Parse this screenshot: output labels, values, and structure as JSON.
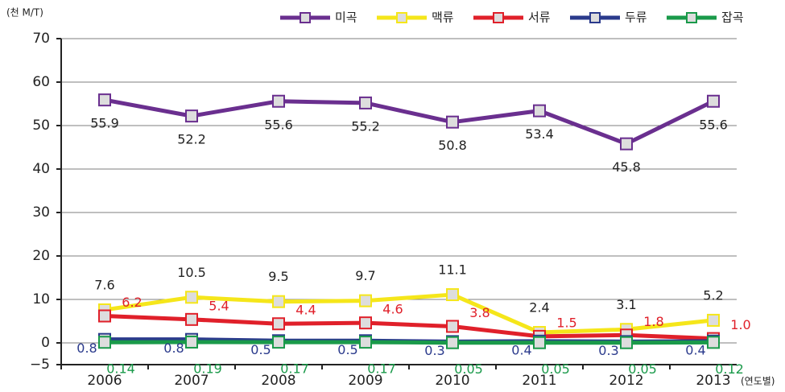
{
  "chart_data": {
    "type": "line",
    "y_label": "(천 M/T)",
    "x_label": "(연도별)",
    "categories": [
      "2006",
      "2007",
      "2008",
      "2009",
      "2010",
      "2011",
      "2012",
      "2013"
    ],
    "ylim": [
      -5,
      70
    ],
    "yticks": [
      {
        "value": -5,
        "label": "−5"
      },
      0,
      10,
      20,
      30,
      40,
      50,
      60,
      70
    ],
    "grid": true,
    "legend": "top-right",
    "series": [
      {
        "name": "미곡",
        "color": "#6a2f8f",
        "values": [
          55.9,
          52.2,
          55.6,
          55.2,
          50.8,
          53.4,
          45.8,
          55.6
        ]
      },
      {
        "name": "맥류",
        "color": "#f5e61a",
        "values": [
          7.6,
          10.5,
          9.5,
          9.7,
          11.1,
          2.4,
          3.1,
          5.2
        ]
      },
      {
        "name": "서류",
        "color": "#e0202a",
        "values": [
          6.2,
          5.4,
          4.4,
          4.6,
          3.8,
          1.5,
          1.8,
          1.0
        ],
        "value_labels": [
          "6.2",
          "5.4",
          "4.4",
          "4.6",
          "3.8",
          "1.5",
          "1.8",
          "1.0"
        ]
      },
      {
        "name": "두류",
        "color": "#2a3a8c",
        "values": [
          0.8,
          0.8,
          0.5,
          0.5,
          0.3,
          0.4,
          0.3,
          0.4
        ]
      },
      {
        "name": "잡곡",
        "color": "#1a9a4a",
        "values": [
          0.14,
          0.19,
          0.17,
          0.17,
          0.05,
          0.05,
          0.05,
          0.12
        ]
      }
    ]
  }
}
